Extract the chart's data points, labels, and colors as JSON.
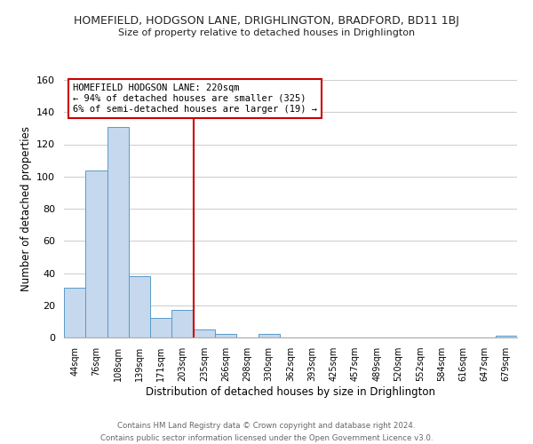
{
  "title_line1": "HOMEFIELD, HODGSON LANE, DRIGHLINGTON, BRADFORD, BD11 1BJ",
  "title_line2": "Size of property relative to detached houses in Drighlington",
  "xlabel": "Distribution of detached houses by size in Drighlington",
  "ylabel": "Number of detached properties",
  "bar_labels": [
    "44sqm",
    "76sqm",
    "108sqm",
    "139sqm",
    "171sqm",
    "203sqm",
    "235sqm",
    "266sqm",
    "298sqm",
    "330sqm",
    "362sqm",
    "393sqm",
    "425sqm",
    "457sqm",
    "489sqm",
    "520sqm",
    "552sqm",
    "584sqm",
    "616sqm",
    "647sqm",
    "679sqm"
  ],
  "bar_heights": [
    31,
    104,
    131,
    38,
    12,
    17,
    5,
    2,
    0,
    2,
    0,
    0,
    0,
    0,
    0,
    0,
    0,
    0,
    0,
    0,
    1
  ],
  "bar_color": "#c5d8ed",
  "bar_edge_color": "#5a9ac8",
  "vline_x": 5.5,
  "vline_color": "#cc0000",
  "ylim": [
    0,
    160
  ],
  "yticks": [
    0,
    20,
    40,
    60,
    80,
    100,
    120,
    140,
    160
  ],
  "annotation_title": "HOMEFIELD HODGSON LANE: 220sqm",
  "annotation_line1": "← 94% of detached houses are smaller (325)",
  "annotation_line2": "6% of semi-detached houses are larger (19) →",
  "annotation_box_color": "#ffffff",
  "annotation_box_edge": "#cc0000",
  "footer_line1": "Contains HM Land Registry data © Crown copyright and database right 2024.",
  "footer_line2": "Contains public sector information licensed under the Open Government Licence v3.0.",
  "bg_color": "#ffffff",
  "grid_color": "#d0d0d0"
}
